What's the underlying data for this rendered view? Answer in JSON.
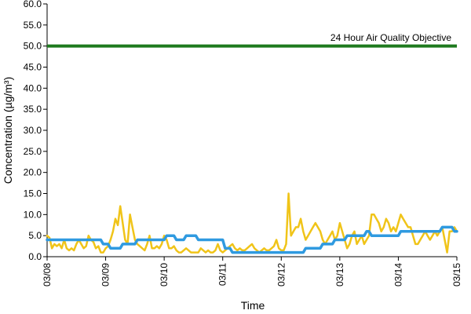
{
  "chart_data": {
    "type": "line",
    "xlabel": "Time",
    "ylabel": "Concentration (µg/m³)",
    "ylim": [
      0,
      60
    ],
    "y_ticks": [
      "0.0",
      "5.0",
      "10.0",
      "15.0",
      "20.0",
      "25.0",
      "30.0",
      "35.0",
      "40.0",
      "45.0",
      "50.0",
      "55.0",
      "60.0"
    ],
    "x_ticks": [
      "03/08",
      "03/09",
      "03/10",
      "03/11",
      "03/12",
      "03/13",
      "03/14",
      "03/15"
    ],
    "xlim_days": [
      0,
      7
    ],
    "grid": false,
    "colors": {
      "objective": "#1e7a1e",
      "hourly": "#f0c419",
      "daily": "#2f9ae0"
    },
    "objective": {
      "label": "24 Hour Air Quality Objective",
      "value": 50.0
    },
    "series": [
      {
        "key": "hourly",
        "x_days": [
          0.0,
          0.0417,
          0.0833,
          0.125,
          0.1667,
          0.2083,
          0.25,
          0.2917,
          0.3333,
          0.375,
          0.4167,
          0.4583,
          0.5,
          0.5417,
          0.5833,
          0.625,
          0.6667,
          0.7083,
          0.75,
          0.7917,
          0.8333,
          0.875,
          0.9167,
          0.9583,
          1.0,
          1.0417,
          1.0833,
          1.125,
          1.1667,
          1.2083,
          1.25,
          1.2917,
          1.3333,
          1.375,
          1.4167,
          1.4583,
          1.5,
          1.5417,
          1.5833,
          1.625,
          1.6667,
          1.7083,
          1.75,
          1.7917,
          1.8333,
          1.875,
          1.9167,
          1.9583,
          2.0,
          2.0417,
          2.0833,
          2.125,
          2.1667,
          2.2083,
          2.25,
          2.2917,
          2.3333,
          2.375,
          2.4167,
          2.4583,
          2.5,
          2.5417,
          2.5833,
          2.625,
          2.6667,
          2.7083,
          2.75,
          2.7917,
          2.8333,
          2.875,
          2.9167,
          2.9583,
          3.0,
          3.0417,
          3.0833,
          3.125,
          3.1667,
          3.2083,
          3.25,
          3.2917,
          3.3333,
          3.375,
          3.4167,
          3.4583,
          3.5,
          3.5417,
          3.5833,
          3.625,
          3.6667,
          3.7083,
          3.75,
          3.7917,
          3.8333,
          3.875,
          3.9167,
          3.9583,
          4.0,
          4.0417,
          4.0833,
          4.125,
          4.1667,
          4.2083,
          4.25,
          4.2917,
          4.3333,
          4.375,
          4.4167,
          4.4583,
          4.5,
          4.5417,
          4.5833,
          4.625,
          4.6667,
          4.7083,
          4.75,
          4.7917,
          4.8333,
          4.875,
          4.9167,
          4.9583,
          5.0,
          5.0417,
          5.0833,
          5.125,
          5.1667,
          5.2083,
          5.25,
          5.2917,
          5.3333,
          5.375,
          5.4167,
          5.4583,
          5.5,
          5.5417,
          5.5833,
          5.625,
          5.6667,
          5.7083,
          5.75,
          5.7917,
          5.8333,
          5.875,
          5.9167,
          5.9583,
          6.0,
          6.0417,
          6.0833,
          6.125,
          6.1667,
          6.2083,
          6.25,
          6.2917,
          6.3333,
          6.375,
          6.4167,
          6.4583,
          6.5,
          6.5417,
          6.5833,
          6.625,
          6.6667,
          6.7083,
          6.75,
          6.7917,
          6.8333,
          6.875,
          6.9167,
          6.9583,
          7.0
        ],
        "values": [
          5,
          4.5,
          2,
          3,
          2.5,
          3,
          2,
          4,
          2,
          1.5,
          2,
          1.5,
          3,
          4,
          3,
          2,
          2.5,
          5,
          4,
          3.5,
          2,
          2.5,
          1,
          1,
          2,
          2.5,
          4,
          6,
          9,
          7.5,
          12,
          8,
          4,
          3,
          10,
          7,
          4,
          3,
          2.5,
          2,
          1.5,
          3,
          5,
          2,
          2,
          2.5,
          2,
          3,
          5,
          4,
          2,
          2,
          2.5,
          1.5,
          1,
          1,
          1.5,
          2,
          1.5,
          1,
          1,
          1,
          1,
          2,
          1.5,
          1,
          1.5,
          1,
          1,
          1.5,
          3,
          1.5,
          1,
          1.5,
          2,
          2.5,
          3,
          2,
          1.5,
          2,
          1.5,
          1.5,
          2,
          2.5,
          3,
          2,
          1.5,
          1,
          1.5,
          2,
          1.5,
          1.5,
          2,
          2.5,
          4,
          2,
          1.5,
          1.5,
          3,
          15,
          5,
          6,
          7,
          7,
          9,
          6,
          4,
          5,
          6,
          7,
          8,
          7,
          6,
          4,
          3,
          4,
          5,
          6,
          4,
          5,
          8,
          6,
          4,
          2,
          3,
          5,
          6,
          3,
          4,
          5,
          3,
          4,
          5,
          10,
          10,
          9,
          8,
          6,
          7,
          9,
          8,
          6,
          7,
          6,
          8,
          10,
          9,
          8,
          7,
          7,
          5,
          3,
          3,
          4,
          5,
          6,
          5,
          4,
          5,
          6,
          5,
          6,
          7,
          4,
          1,
          6,
          6,
          7,
          6
        ]
      },
      {
        "key": "daily",
        "x_days": [
          0.0,
          0.9167,
          0.9583,
          1.0417,
          1.0833,
          1.25,
          1.2917,
          1.5,
          1.5417,
          2.0,
          2.0417,
          2.1667,
          2.2083,
          2.3333,
          2.375,
          2.5417,
          2.5833,
          3.0,
          3.0417,
          3.125,
          3.1667,
          3.9583,
          4.0,
          4.375,
          4.4167,
          4.6667,
          4.7083,
          4.875,
          4.9167,
          5.0833,
          5.125,
          5.4167,
          5.4583,
          5.5,
          5.5417,
          6.0,
          6.0417,
          6.7083,
          6.75,
          6.9167,
          6.9583,
          7.0
        ],
        "values": [
          4,
          4,
          3,
          3,
          2,
          2,
          3,
          3,
          4,
          4,
          5,
          5,
          4,
          4,
          5,
          5,
          4,
          4,
          2,
          2,
          1,
          1,
          1,
          1,
          2,
          2,
          3,
          3,
          4,
          4,
          5,
          5,
          6,
          6,
          5,
          5,
          6,
          6,
          7,
          7,
          6,
          6
        ]
      }
    ]
  }
}
